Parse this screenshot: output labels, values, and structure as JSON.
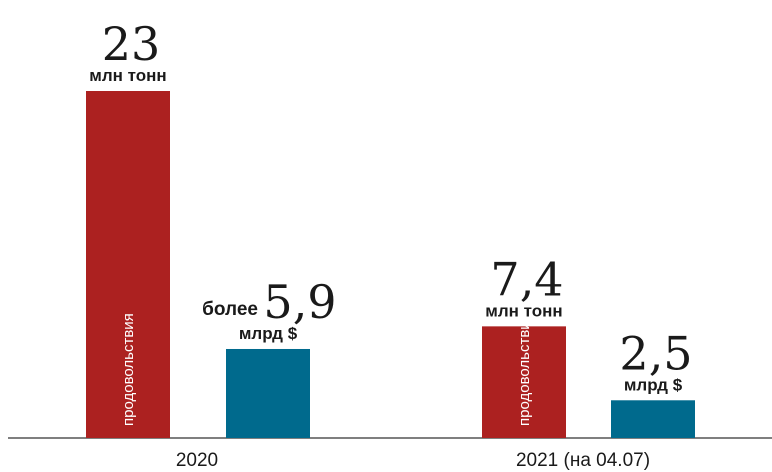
{
  "chart_data": {
    "type": "bar",
    "categories": [
      "2020",
      "2021 (на 04.07)"
    ],
    "colors": {
      "food": "#ac2120",
      "money": "#006a8d",
      "axis": "#333333"
    },
    "ylim": [
      0,
      23
    ],
    "grid": false,
    "legend": "none",
    "series": [
      {
        "inbar_label": "продовольствия",
        "values": [
          23,
          7.4
        ],
        "value_labels": [
          "23",
          "7,4"
        ],
        "unit": "млн тонн"
      },
      {
        "values": [
          5.9,
          2.5
        ],
        "value_labels": [
          "5,9",
          "2,5"
        ],
        "prefixes": [
          "более",
          ""
        ],
        "unit": "млрд $"
      }
    ]
  }
}
